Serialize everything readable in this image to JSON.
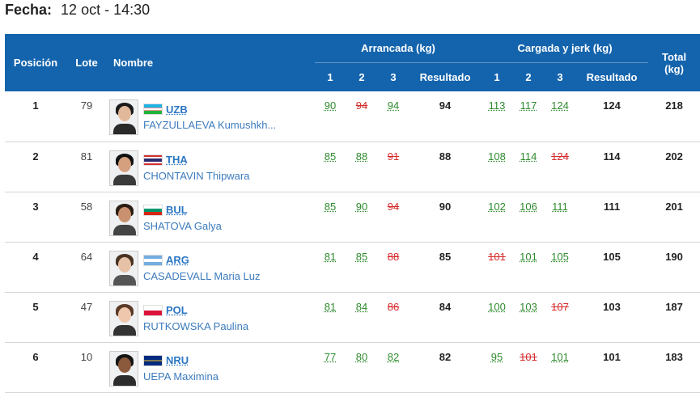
{
  "header": {
    "fecha_label": "Fecha:",
    "fecha_value": "12 oct - 14:30"
  },
  "columns": {
    "posicion": "Posición",
    "lote": "Lote",
    "nombre": "Nombre",
    "arrancada": "Arrancada (kg)",
    "cargada": "Cargada y jerk (kg)",
    "total_line1": "Total",
    "total_line2": "(kg)",
    "a1": "1",
    "a2": "2",
    "a3": "3",
    "resultado": "Resultado"
  },
  "rows": [
    {
      "pos": "1",
      "lot": "79",
      "country": "UZB",
      "name": "FAYZULLAEVA Kumushkh...",
      "snatch": [
        {
          "v": "90",
          "ok": true
        },
        {
          "v": "94",
          "ok": false
        },
        {
          "v": "94",
          "ok": true
        }
      ],
      "snatch_res": "94",
      "cj": [
        {
          "v": "113",
          "ok": true
        },
        {
          "v": "117",
          "ok": true
        },
        {
          "v": "124",
          "ok": true
        }
      ],
      "cj_res": "124",
      "total": "218"
    },
    {
      "pos": "2",
      "lot": "81",
      "country": "THA",
      "name": "CHONTAVIN Thipwara",
      "snatch": [
        {
          "v": "85",
          "ok": true
        },
        {
          "v": "88",
          "ok": true
        },
        {
          "v": "91",
          "ok": false
        }
      ],
      "snatch_res": "88",
      "cj": [
        {
          "v": "108",
          "ok": true
        },
        {
          "v": "114",
          "ok": true
        },
        {
          "v": "124",
          "ok": false
        }
      ],
      "cj_res": "114",
      "total": "202"
    },
    {
      "pos": "3",
      "lot": "58",
      "country": "BUL",
      "name": "SHATOVA Galya",
      "snatch": [
        {
          "v": "85",
          "ok": true
        },
        {
          "v": "90",
          "ok": true
        },
        {
          "v": "94",
          "ok": false
        }
      ],
      "snatch_res": "90",
      "cj": [
        {
          "v": "102",
          "ok": true
        },
        {
          "v": "106",
          "ok": true
        },
        {
          "v": "111",
          "ok": true
        }
      ],
      "cj_res": "111",
      "total": "201"
    },
    {
      "pos": "4",
      "lot": "64",
      "country": "ARG",
      "name": "CASADEVALL Maria Luz",
      "snatch": [
        {
          "v": "81",
          "ok": true
        },
        {
          "v": "85",
          "ok": true
        },
        {
          "v": "88",
          "ok": false
        }
      ],
      "snatch_res": "85",
      "cj": [
        {
          "v": "101",
          "ok": false
        },
        {
          "v": "101",
          "ok": true
        },
        {
          "v": "105",
          "ok": true
        }
      ],
      "cj_res": "105",
      "total": "190"
    },
    {
      "pos": "5",
      "lot": "47",
      "country": "POL",
      "name": "RUTKOWSKA Paulina",
      "snatch": [
        {
          "v": "81",
          "ok": true
        },
        {
          "v": "84",
          "ok": true
        },
        {
          "v": "86",
          "ok": false
        }
      ],
      "snatch_res": "84",
      "cj": [
        {
          "v": "100",
          "ok": true
        },
        {
          "v": "103",
          "ok": true
        },
        {
          "v": "107",
          "ok": false
        }
      ],
      "cj_res": "103",
      "total": "187"
    },
    {
      "pos": "6",
      "lot": "10",
      "country": "NRU",
      "name": "UEPA Maximina",
      "snatch": [
        {
          "v": "77",
          "ok": true
        },
        {
          "v": "80",
          "ok": true
        },
        {
          "v": "82",
          "ok": true
        }
      ],
      "snatch_res": "82",
      "cj": [
        {
          "v": "95",
          "ok": true
        },
        {
          "v": "101",
          "ok": false
        },
        {
          "v": "101",
          "ok": true
        }
      ],
      "cj_res": "101",
      "total": "183"
    }
  ],
  "colors": {
    "header_bg": "#1464ad",
    "good_lift": "#2e8b2e",
    "bad_lift": "#d62b2b",
    "link": "#2b76c2"
  }
}
